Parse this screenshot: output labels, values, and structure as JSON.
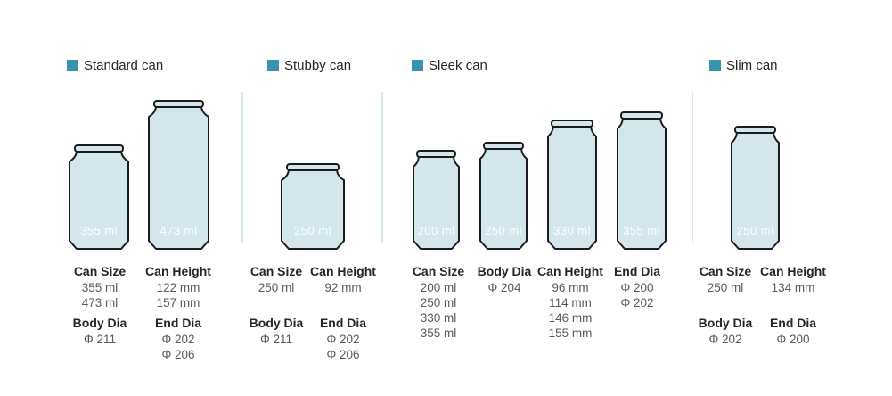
{
  "colors": {
    "accent": "#3a93ad",
    "can_fill": "#d3e6ec",
    "can_stroke": "#1c1c1c",
    "divider": "#d9ebe7",
    "heading_text": "#262626",
    "value_text": "#5a5a5a",
    "volume_text": "#ffffff"
  },
  "sections": [
    {
      "title": "Standard can",
      "cans": [
        {
          "volume": "355 ml"
        },
        {
          "volume": "473 ml"
        }
      ],
      "specs": {
        "can_size": {
          "label": "Can Size",
          "values": [
            "355 ml",
            "473 ml"
          ]
        },
        "can_height": {
          "label": "Can Height",
          "values": [
            "122 mm",
            "157 mm"
          ]
        },
        "body_dia": {
          "label": "Body Dia",
          "values": [
            "Φ 211"
          ]
        },
        "end_dia": {
          "label": "End Dia",
          "values": [
            "Φ 202",
            "Φ 206"
          ]
        }
      }
    },
    {
      "title": "Stubby can",
      "cans": [
        {
          "volume": "250 ml"
        }
      ],
      "specs": {
        "can_size": {
          "label": "Can Size",
          "values": [
            "250 ml"
          ]
        },
        "can_height": {
          "label": "Can Height",
          "values": [
            "92 mm"
          ]
        },
        "body_dia": {
          "label": "Body Dia",
          "values": [
            "Φ 211"
          ]
        },
        "end_dia": {
          "label": "End Dia",
          "values": [
            "Φ 202",
            "Φ 206"
          ]
        }
      }
    },
    {
      "title": "Sleek can",
      "cans": [
        {
          "volume": "200 ml"
        },
        {
          "volume": "250 ml"
        },
        {
          "volume": "330 ml"
        },
        {
          "volume": "355 ml"
        }
      ],
      "specs": {
        "can_size": {
          "label": "Can Size",
          "values": [
            "200 ml",
            "250 ml",
            "330 ml",
            "355 ml"
          ]
        },
        "body_dia": {
          "label": "Body Dia",
          "values": [
            "Φ 204"
          ]
        },
        "can_height": {
          "label": "Can Height",
          "values": [
            "96 mm",
            "114 mm",
            "146 mm",
            "155 mm"
          ]
        },
        "end_dia": {
          "label": "End Dia",
          "values": [
            "Φ 200",
            "Φ 202"
          ]
        }
      }
    },
    {
      "title": "Slim can",
      "cans": [
        {
          "volume": "250 ml"
        }
      ],
      "specs": {
        "can_size": {
          "label": "Can Size",
          "values": [
            "250 ml"
          ]
        },
        "can_height": {
          "label": "Can Height",
          "values": [
            "134 mm"
          ]
        },
        "body_dia": {
          "label": "Body Dia",
          "values": [
            "Φ 202"
          ]
        },
        "end_dia": {
          "label": "End Dia",
          "values": [
            "Φ 200"
          ]
        }
      }
    }
  ]
}
